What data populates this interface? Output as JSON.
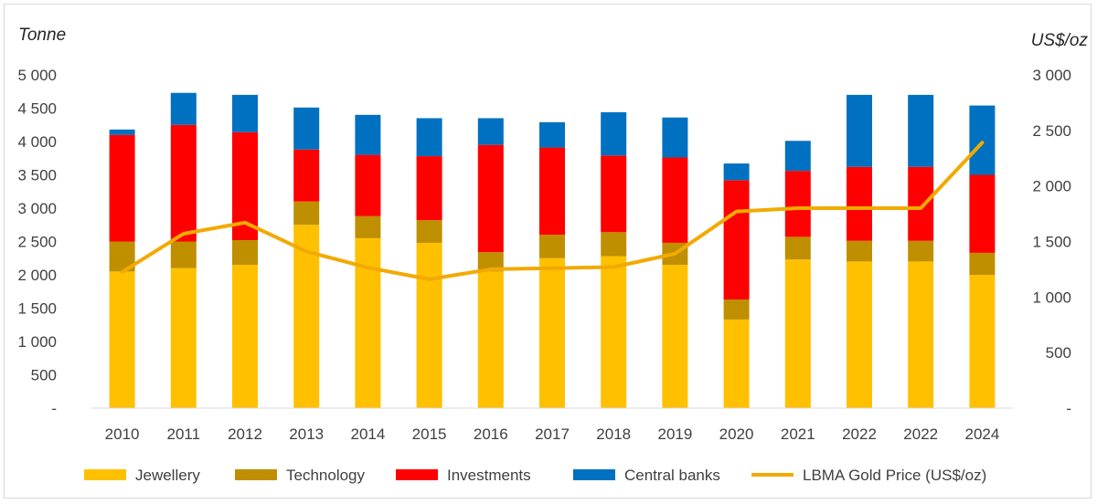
{
  "chart_data": {
    "type": "bar",
    "stacked": true,
    "categories": [
      "2010",
      "2011",
      "2012",
      "2013",
      "2014",
      "2015",
      "2016",
      "2017",
      "2018",
      "2019",
      "2020",
      "2021",
      "2022",
      "2022",
      "2024"
    ],
    "series": [
      {
        "name": "Jewellery",
        "color": "#FFC000",
        "values": [
          2050,
          2100,
          2150,
          2750,
          2550,
          2480,
          2050,
          2250,
          2280,
          2150,
          1330,
          2230,
          2200,
          2200,
          2000
        ]
      },
      {
        "name": "Technology",
        "color": "#BF8F00",
        "values": [
          450,
          400,
          370,
          350,
          330,
          340,
          290,
          350,
          360,
          330,
          300,
          340,
          310,
          310,
          330
        ]
      },
      {
        "name": "Investments",
        "color": "#FF0000",
        "values": [
          1600,
          1750,
          1620,
          780,
          920,
          960,
          1610,
          1310,
          1150,
          1280,
          1790,
          990,
          1110,
          1110,
          1170
        ]
      },
      {
        "name": "Central banks",
        "color": "#0070C0",
        "values": [
          80,
          480,
          560,
          630,
          600,
          570,
          400,
          380,
          650,
          600,
          250,
          450,
          1080,
          1080,
          1040
        ]
      }
    ],
    "line": {
      "name": "LBMA Gold Price (US$/oz)",
      "color": "#F2A900",
      "axis": "right",
      "values": [
        1225,
        1570,
        1670,
        1410,
        1265,
        1160,
        1250,
        1260,
        1270,
        1390,
        1770,
        1800,
        1800,
        1800,
        2390
      ]
    },
    "ylabel": "Tonne",
    "y2label": "US$/oz",
    "ylim": [
      0,
      5000
    ],
    "y2lim": [
      0,
      3000
    ],
    "yticks": [
      "-",
      "500",
      "1 000",
      "1 500",
      "2 000",
      "2 500",
      "3 000",
      "3 500",
      "4 000",
      "4 500",
      "5 000"
    ],
    "y2ticks": [
      "-",
      "500",
      "1 000",
      "1 500",
      "2 000",
      "2 500",
      "3 000"
    ],
    "legend": [
      "Jewellery",
      "Technology",
      "Investments",
      "Central banks",
      "LBMA Gold Price (US$/oz)"
    ],
    "legend_position": "bottom",
    "grid": false
  }
}
